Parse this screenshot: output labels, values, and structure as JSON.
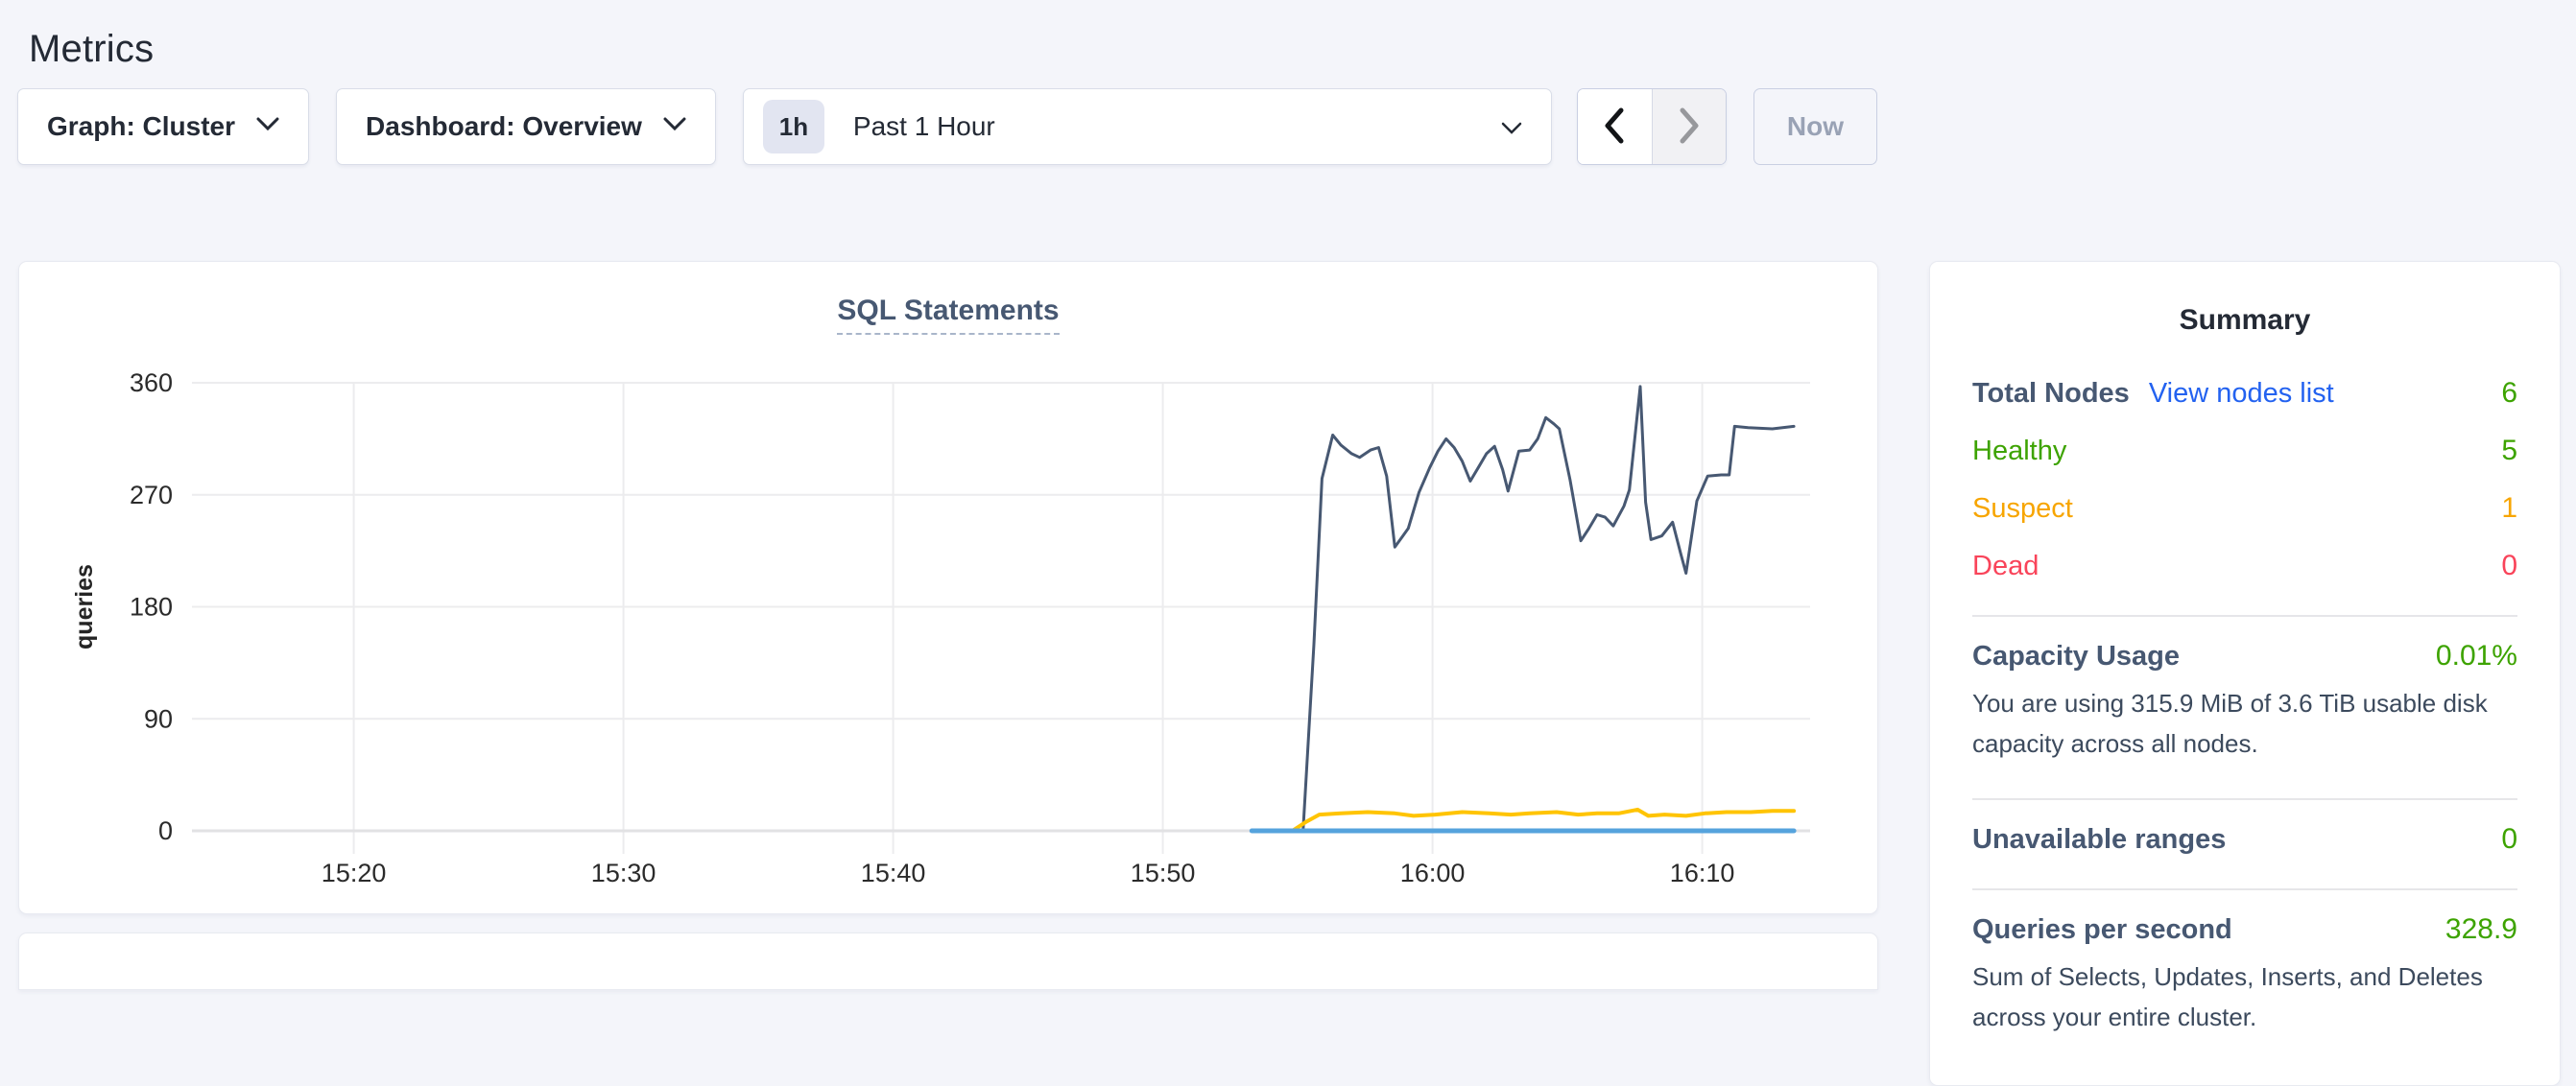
{
  "page": {
    "title": "Metrics"
  },
  "toolbar": {
    "graph_dropdown": "Graph: Cluster",
    "dashboard_dropdown": "Dashboard: Overview",
    "time_badge": "1h",
    "time_label": "Past 1 Hour",
    "now_button": "Now"
  },
  "summary": {
    "title": "Summary",
    "total_nodes_label": "Total Nodes",
    "view_nodes_link": "View nodes list",
    "total_nodes_value": "6",
    "node_rows": [
      {
        "label": "Healthy",
        "value": "5"
      },
      {
        "label": "Suspect",
        "value": "1"
      },
      {
        "label": "Dead",
        "value": "0"
      }
    ],
    "capacity_label": "Capacity Usage",
    "capacity_value": "0.01%",
    "capacity_desc": "You are using 315.9 MiB of 3.6 TiB usable disk capacity across all nodes.",
    "unavailable_label": "Unavailable ranges",
    "unavailable_value": "0",
    "qps_label": "Queries per second",
    "qps_value": "328.9",
    "qps_desc": "Sum of Selects, Updates, Inserts, and Deletes across your entire cluster."
  },
  "colors": {
    "page_bg": "#f4f5fa",
    "navy": "#242a35",
    "slate": "#475872",
    "green": "#3da300",
    "orange": "#f7a500",
    "red": "#f9445a",
    "link": "#2362f0"
  },
  "chart_data": {
    "type": "line",
    "title": "SQL Statements",
    "ylabel": "queries",
    "xlabel": "",
    "grid": true,
    "legend": "none",
    "ylim": [
      0,
      360
    ],
    "yticks": [
      0,
      90,
      180,
      270,
      360
    ],
    "x_window": "Past 1 Hour (≈15:14 – 16:14)",
    "xlim_minutes": [
      0,
      60
    ],
    "xticks": [
      {
        "label": "15:20",
        "t": 6
      },
      {
        "label": "15:30",
        "t": 16
      },
      {
        "label": "15:40",
        "t": 26
      },
      {
        "label": "15:50",
        "t": 36
      },
      {
        "label": "16:00",
        "t": 46
      },
      {
        "label": "16:10",
        "t": 56
      }
    ],
    "series": [
      {
        "color": "#475872",
        "stroke_width": 3,
        "points": [
          [
            40.8,
            0
          ],
          [
            41.2,
            0
          ],
          [
            41.6,
            150
          ],
          [
            41.9,
            283
          ],
          [
            42.3,
            318
          ],
          [
            42.6,
            310
          ],
          [
            43.0,
            303
          ],
          [
            43.3,
            300
          ],
          [
            43.7,
            306
          ],
          [
            44.0,
            308
          ],
          [
            44.3,
            285
          ],
          [
            44.6,
            228
          ],
          [
            44.9,
            237
          ],
          [
            45.1,
            243
          ],
          [
            45.5,
            272
          ],
          [
            45.9,
            292
          ],
          [
            46.2,
            305
          ],
          [
            46.5,
            315
          ],
          [
            46.8,
            308
          ],
          [
            47.1,
            297
          ],
          [
            47.4,
            281
          ],
          [
            47.7,
            292
          ],
          [
            48.0,
            303
          ],
          [
            48.3,
            309
          ],
          [
            48.6,
            290
          ],
          [
            48.8,
            273
          ],
          [
            49.2,
            305
          ],
          [
            49.6,
            306
          ],
          [
            49.9,
            315
          ],
          [
            50.2,
            332
          ],
          [
            50.5,
            327
          ],
          [
            50.7,
            323
          ],
          [
            51.1,
            282
          ],
          [
            51.5,
            233
          ],
          [
            51.8,
            243
          ],
          [
            52.1,
            254
          ],
          [
            52.4,
            252
          ],
          [
            52.7,
            245
          ],
          [
            53.1,
            261
          ],
          [
            53.3,
            274
          ],
          [
            53.7,
            357
          ],
          [
            53.9,
            264
          ],
          [
            54.1,
            234
          ],
          [
            54.5,
            237
          ],
          [
            54.9,
            248
          ],
          [
            55.2,
            223
          ],
          [
            55.4,
            207
          ],
          [
            55.8,
            265
          ],
          [
            56.2,
            285
          ],
          [
            56.7,
            286
          ],
          [
            57.0,
            286
          ],
          [
            57.2,
            325
          ],
          [
            57.7,
            324
          ],
          [
            58.6,
            323
          ],
          [
            59.4,
            325
          ]
        ]
      },
      {
        "color": "#ffc402",
        "stroke_width": 4,
        "points": [
          [
            40.8,
            0
          ],
          [
            41.3,
            7
          ],
          [
            41.8,
            13
          ],
          [
            42.6,
            14
          ],
          [
            43.6,
            15
          ],
          [
            44.6,
            14
          ],
          [
            45.3,
            12
          ],
          [
            46.1,
            13
          ],
          [
            47.1,
            15
          ],
          [
            48.1,
            14
          ],
          [
            48.9,
            13
          ],
          [
            49.6,
            14
          ],
          [
            50.6,
            15
          ],
          [
            51.4,
            13
          ],
          [
            52.1,
            14
          ],
          [
            52.9,
            14
          ],
          [
            53.6,
            17
          ],
          [
            54.0,
            12
          ],
          [
            54.6,
            13
          ],
          [
            55.4,
            12
          ],
          [
            56.1,
            14
          ],
          [
            56.9,
            15
          ],
          [
            57.8,
            15
          ],
          [
            58.6,
            16
          ],
          [
            59.4,
            16
          ]
        ]
      },
      {
        "color": "#55a3dd",
        "stroke_width": 5,
        "points": [
          [
            39.3,
            0
          ],
          [
            59.4,
            0
          ]
        ]
      }
    ]
  }
}
